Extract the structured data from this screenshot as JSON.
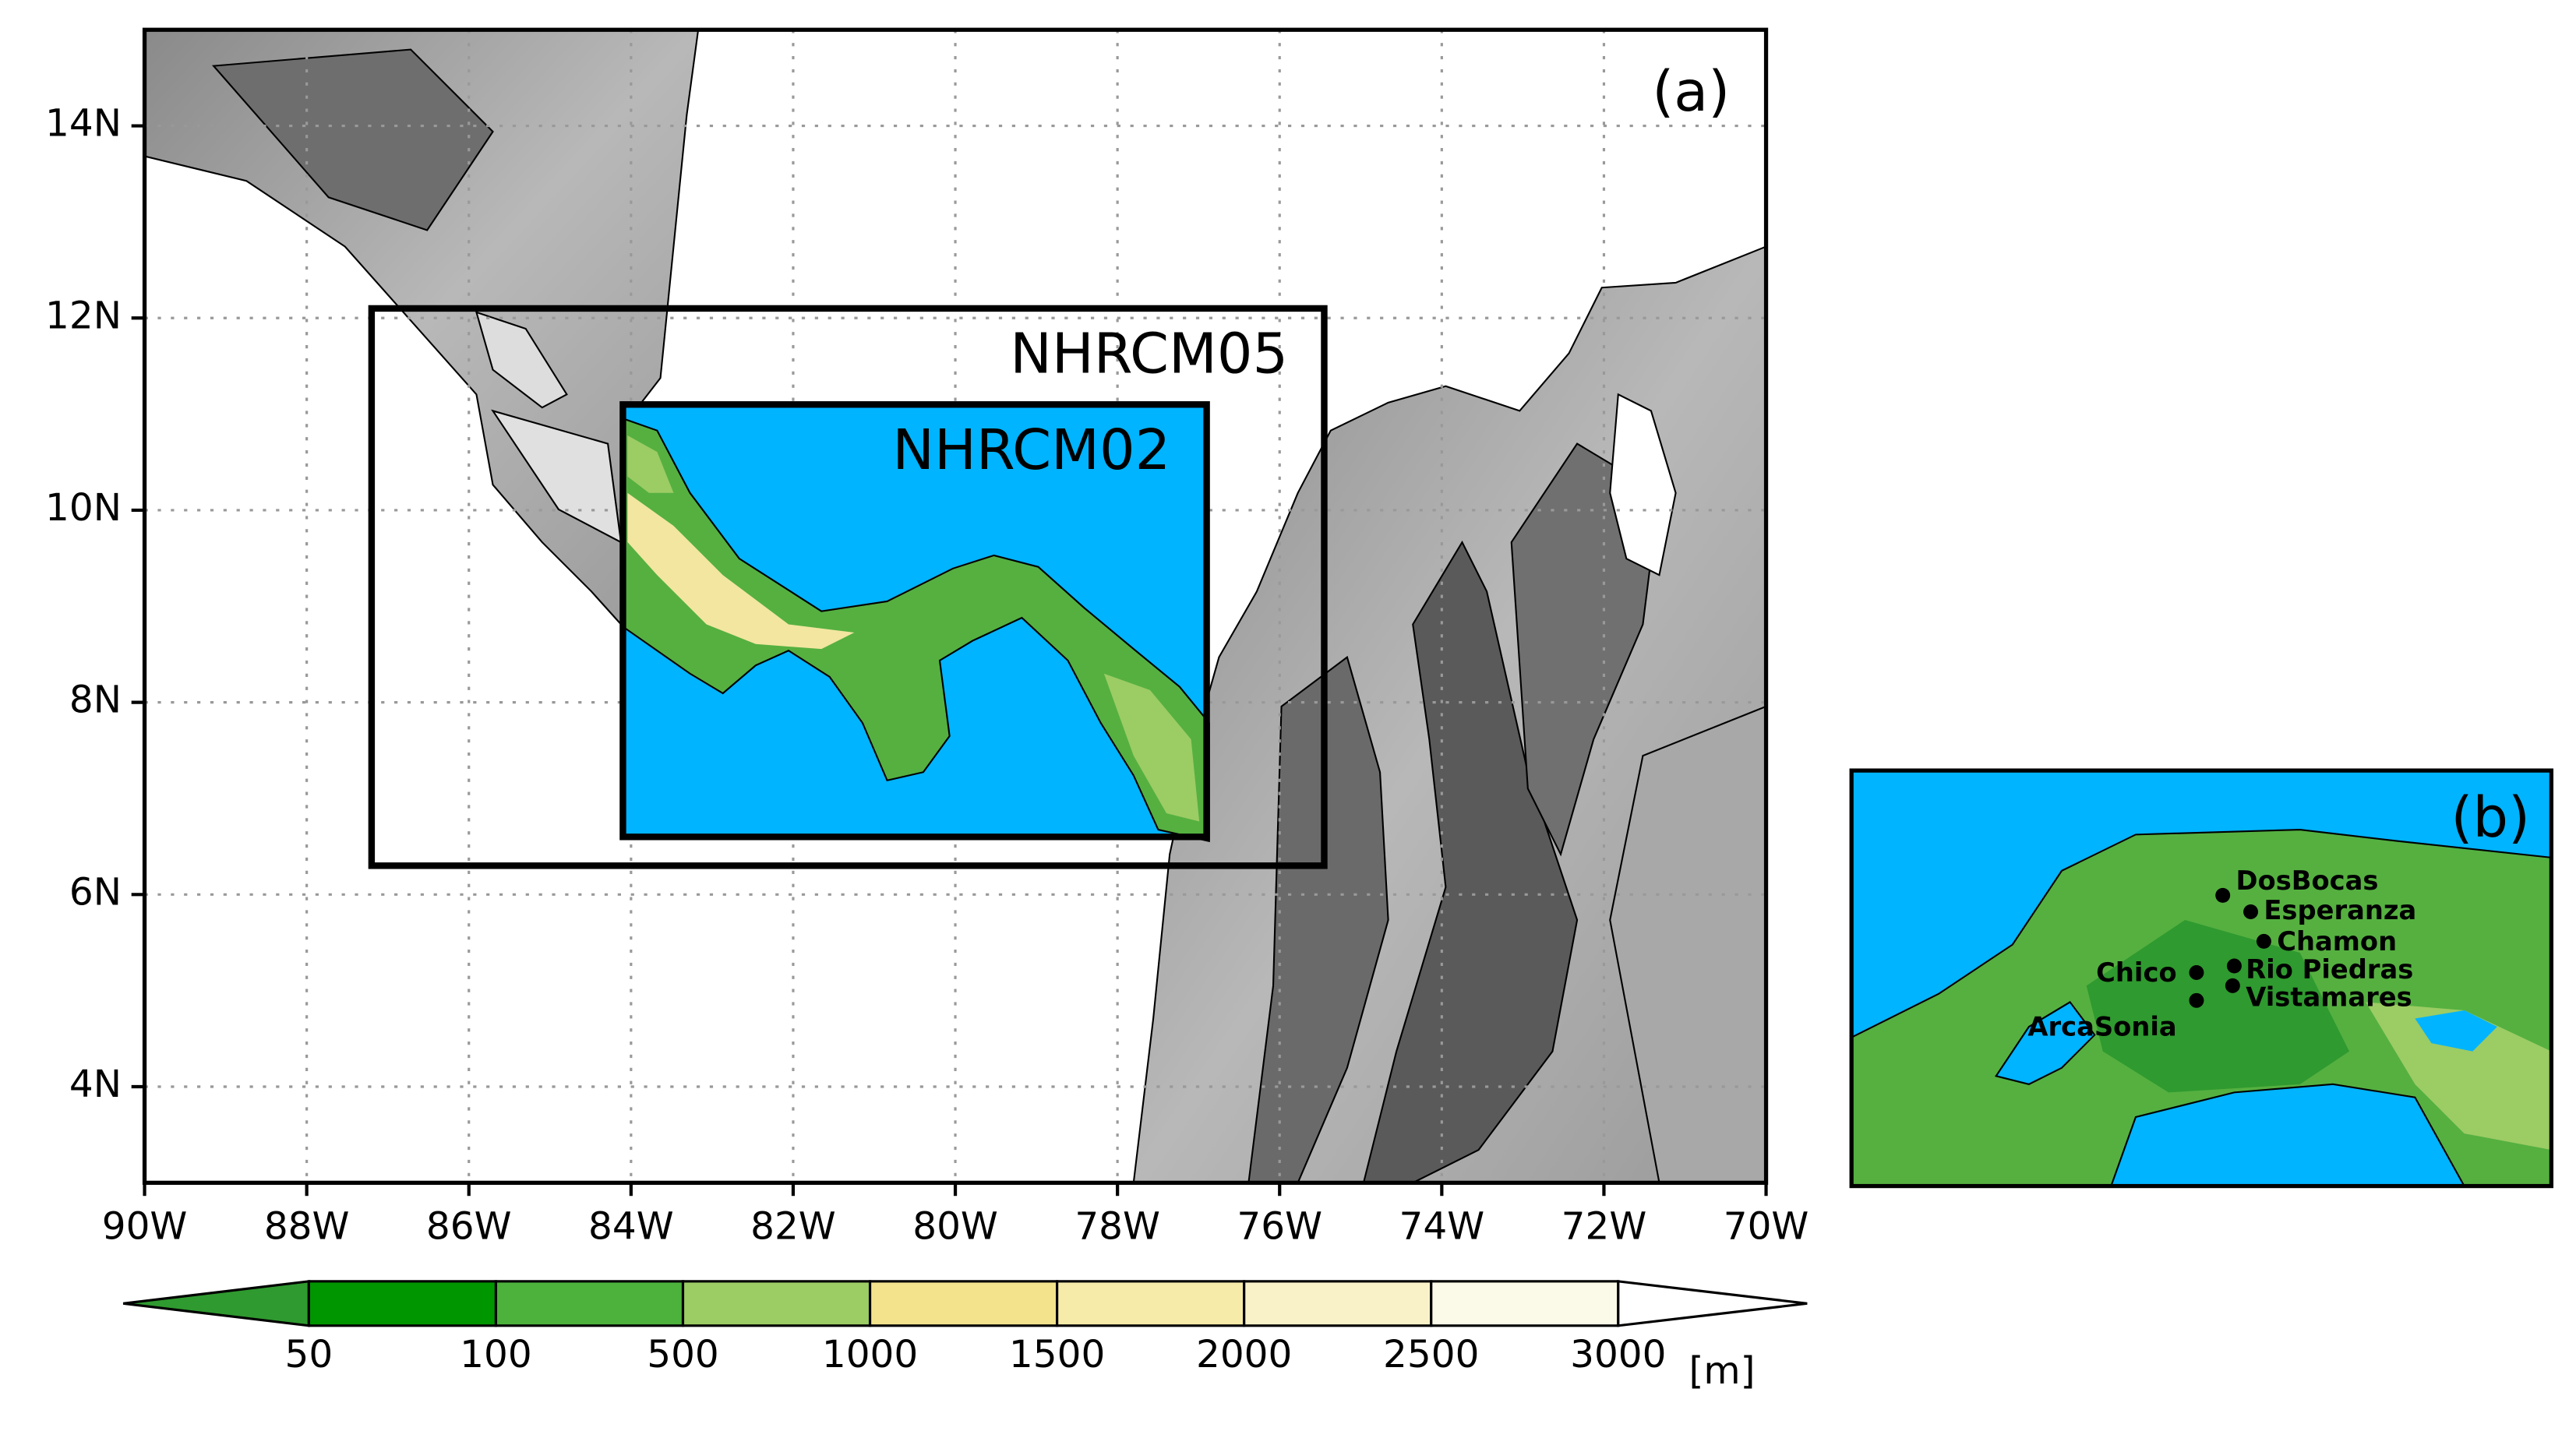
{
  "panel_a": {
    "label": "(a)",
    "xlim": [
      -90,
      -70
    ],
    "ylim": [
      3,
      15
    ],
    "lon_ticks": [
      {
        "value": -90,
        "label": "90W"
      },
      {
        "value": -88,
        "label": "88W"
      },
      {
        "value": -86,
        "label": "86W"
      },
      {
        "value": -84,
        "label": "84W"
      },
      {
        "value": -82,
        "label": "82W"
      },
      {
        "value": -80,
        "label": "80W"
      },
      {
        "value": -78,
        "label": "78W"
      },
      {
        "value": -76,
        "label": "76W"
      },
      {
        "value": -74,
        "label": "74W"
      },
      {
        "value": -72,
        "label": "72W"
      },
      {
        "value": -70,
        "label": "70W"
      }
    ],
    "lat_ticks": [
      {
        "value": 4,
        "label": "4N"
      },
      {
        "value": 6,
        "label": "6N"
      },
      {
        "value": 8,
        "label": "8N"
      },
      {
        "value": 10,
        "label": "10N"
      },
      {
        "value": 12,
        "label": "12N"
      },
      {
        "value": 14,
        "label": "14N"
      }
    ],
    "grid": true,
    "domains": [
      {
        "name": "NHRCM05",
        "lon": [
          -87.2,
          -75.45
        ],
        "lat": [
          6.3,
          12.1
        ]
      },
      {
        "name": "NHRCM02",
        "lon": [
          -84.1,
          -76.9
        ],
        "lat": [
          6.6,
          11.1
        ],
        "fill": "#00b4ff"
      }
    ]
  },
  "colorbar": {
    "levels": [
      50,
      100,
      500,
      1000,
      1500,
      2000,
      2500,
      3000
    ],
    "colors": [
      "#2f9a2f",
      "#009600",
      "#4cb23c",
      "#9ccc64",
      "#f2e38c",
      "#f6eba8",
      "#f9f2c8",
      "#fbf9e8",
      "#ffffff"
    ],
    "unit": "[m]"
  },
  "panel_b": {
    "label": "(b)",
    "stations": [
      "DosBocas",
      "Esperanza",
      "Chamon",
      "Rio Piedras",
      "Chico",
      "Vistamares",
      "ArcaSonia"
    ]
  }
}
